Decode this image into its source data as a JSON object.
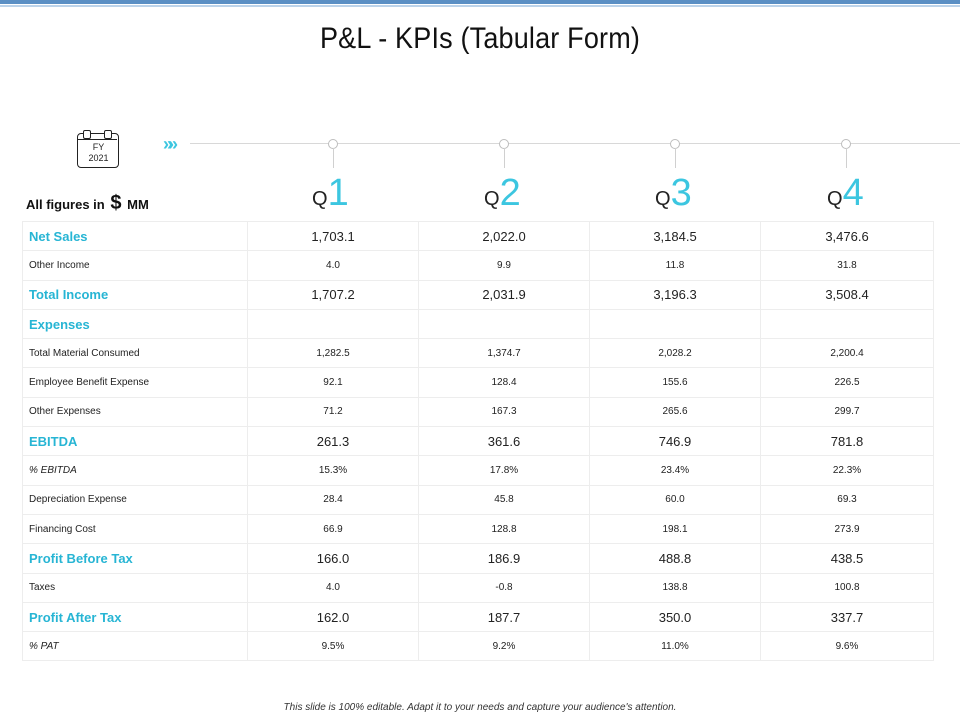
{
  "title": "P&L - KPIs (Tabular Form)",
  "calendar": {
    "line1": "FY",
    "line2": "2021"
  },
  "timeline_chevrons": "»»",
  "figures_label": {
    "prefix": "All figures in",
    "symbol": "$",
    "suffix": "MM"
  },
  "quarters": [
    {
      "letter": "Q",
      "number": "1"
    },
    {
      "letter": "Q",
      "number": "2"
    },
    {
      "letter": "Q",
      "number": "3"
    },
    {
      "letter": "Q",
      "number": "4"
    }
  ],
  "rows": [
    {
      "label": "Net Sales",
      "style": "major",
      "values": [
        "1,703.1",
        "2,022.0",
        "3,184.5",
        "3,476.6"
      ]
    },
    {
      "label": "Other Income",
      "style": "normal",
      "values": [
        "4.0",
        "9.9",
        "11.8",
        "31.8"
      ]
    },
    {
      "label": "Total Income",
      "style": "major",
      "values": [
        "1,707.2",
        "2,031.9",
        "3,196.3",
        "3,508.4"
      ]
    },
    {
      "label": "Expenses",
      "style": "major",
      "values": [
        "",
        "",
        "",
        ""
      ]
    },
    {
      "label": "Total Material Consumed",
      "style": "normal",
      "values": [
        "1,282.5",
        "1,374.7",
        "2,028.2",
        "2,200.4"
      ]
    },
    {
      "label": "Employee Benefit Expense",
      "style": "normal",
      "values": [
        "92.1",
        "128.4",
        "155.6",
        "226.5"
      ]
    },
    {
      "label": "Other Expenses",
      "style": "normal",
      "values": [
        "71.2",
        "167.3",
        "265.6",
        "299.7"
      ]
    },
    {
      "label": "EBITDA",
      "style": "major",
      "values": [
        "261.3",
        "361.6",
        "746.9",
        "781.8"
      ]
    },
    {
      "label": "% EBITDA",
      "style": "pct",
      "values": [
        "15.3%",
        "17.8%",
        "23.4%",
        "22.3%"
      ]
    },
    {
      "label": "Depreciation Expense",
      "style": "normal",
      "values": [
        "28.4",
        "45.8",
        "60.0",
        "69.3"
      ]
    },
    {
      "label": "Financing Cost",
      "style": "normal",
      "values": [
        "66.9",
        "128.8",
        "198.1",
        "273.9"
      ]
    },
    {
      "label": "Profit Before Tax",
      "style": "major",
      "values": [
        "166.0",
        "186.9",
        "488.8",
        "438.5"
      ]
    },
    {
      "label": "Taxes",
      "style": "normal",
      "values": [
        "4.0",
        "-0.8",
        "138.8",
        "100.8"
      ]
    },
    {
      "label": "Profit After Tax",
      "style": "major",
      "values": [
        "162.0",
        "187.7",
        "350.0",
        "337.7"
      ]
    },
    {
      "label": "% PAT",
      "style": "pct",
      "values": [
        "9.5%",
        "9.2%",
        "11.0%",
        "9.6%"
      ]
    }
  ],
  "footer": "This slide is 100% editable. Adapt it to your needs and capture your audience's attention.",
  "colors": {
    "accent": "#27b5d4",
    "quarter_number": "#3cc6e0",
    "top_bar": "#5b8fc4"
  }
}
